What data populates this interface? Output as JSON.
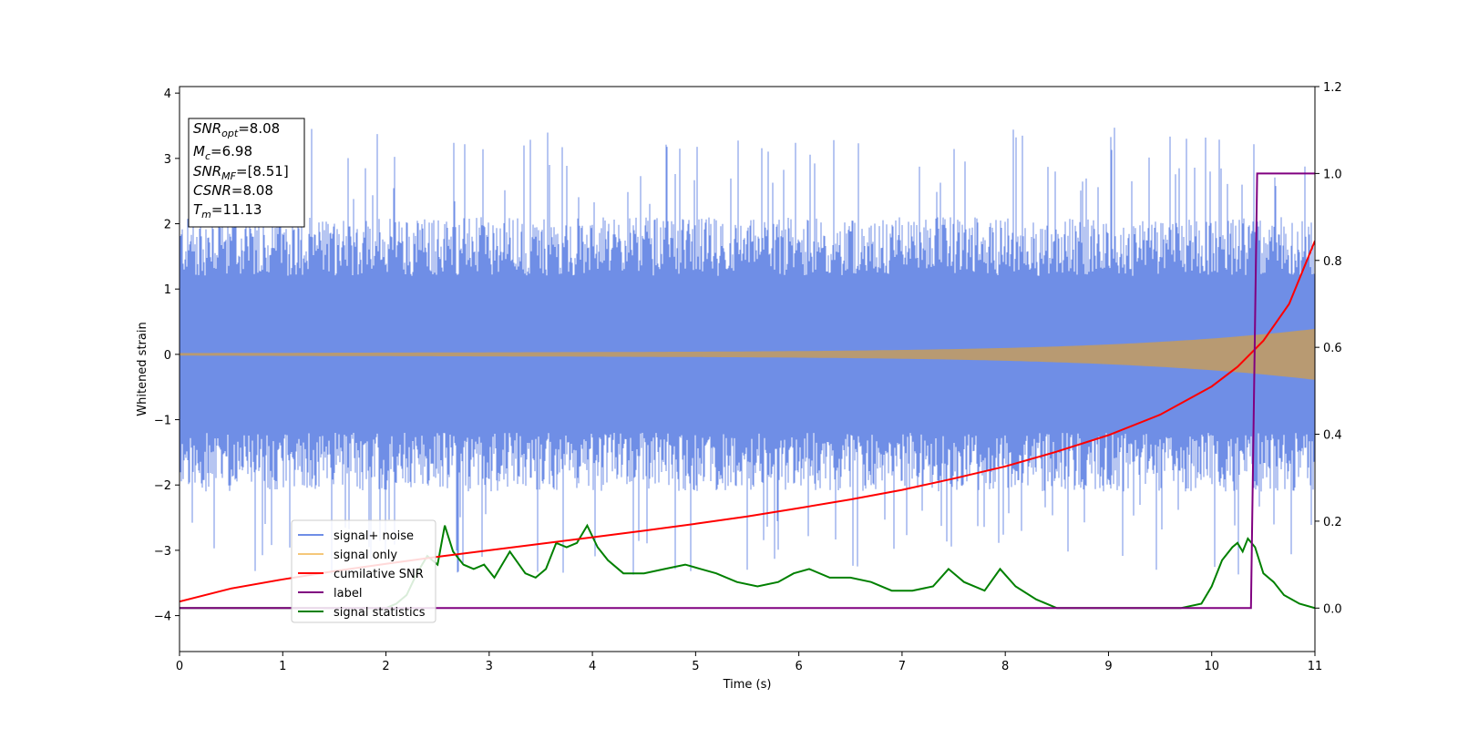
{
  "chart_data": {
    "type": "line",
    "xlabel": "Time (s)",
    "ylabel": "Whitened strain",
    "xlim": [
      0,
      11
    ],
    "ylim_left": [
      -4.55,
      4.1
    ],
    "ylim_right": [
      -0.1,
      1.2
    ],
    "x_ticks": [
      "0",
      "1",
      "2",
      "3",
      "4",
      "5",
      "6",
      "7",
      "8",
      "9",
      "10",
      "11"
    ],
    "y_left_ticks": [
      "4",
      "3",
      "2",
      "1",
      "0",
      "−1",
      "−2",
      "−3",
      "−4"
    ],
    "y_right_ticks": [
      "1.2",
      "1.0",
      "0.8",
      "0.6",
      "0.4",
      "0.2",
      "0.0"
    ],
    "annotation": [
      {
        "main": "SNR",
        "sub": "opt",
        "rest": "=8.08"
      },
      {
        "main": "M",
        "sub": "c",
        "rest": "=6.98"
      },
      {
        "main": "SNR",
        "sub": "MF",
        "rest": "=[8.51]"
      },
      {
        "main": "CSNR",
        "sub": "",
        "rest": "=8.08"
      },
      {
        "main": "T",
        "sub": "m",
        "rest": "=11.13"
      }
    ],
    "legend_position": "lower-left",
    "legend": [
      "signal+ noise",
      "signal only",
      "cumilative SNR",
      "label",
      "signal statistics"
    ],
    "colors": {
      "signal_noise": "#6f8ee6",
      "signal_only": "#e6b06a",
      "cumulative_snr": "#ff0000",
      "label": "#800080",
      "signal_statistics": "#008000"
    },
    "series": [
      {
        "name": "cumilative SNR",
        "axis": "right",
        "x": [
          0,
          0.5,
          1,
          1.5,
          2,
          2.5,
          3,
          3.5,
          4,
          4.5,
          5,
          5.5,
          6,
          6.5,
          7,
          7.5,
          8,
          8.5,
          9,
          9.5,
          10,
          10.25,
          10.5,
          10.75,
          11
        ],
        "y": [
          0.015,
          0.045,
          0.066,
          0.085,
          0.102,
          0.118,
          0.133,
          0.148,
          0.163,
          0.178,
          0.194,
          0.211,
          0.23,
          0.25,
          0.272,
          0.298,
          0.326,
          0.36,
          0.398,
          0.445,
          0.51,
          0.555,
          0.615,
          0.7,
          0.845
        ]
      },
      {
        "name": "label",
        "axis": "right",
        "x": [
          0,
          10.38,
          10.44,
          11
        ],
        "y": [
          0,
          0,
          1,
          1
        ]
      },
      {
        "name": "signal statistics",
        "axis": "right",
        "x": [
          0,
          0.5,
          1,
          1.5,
          2,
          2.1,
          2.2,
          2.3,
          2.4,
          2.5,
          2.57,
          2.65,
          2.75,
          2.85,
          2.95,
          3.05,
          3.2,
          3.35,
          3.45,
          3.55,
          3.65,
          3.75,
          3.85,
          3.95,
          4.05,
          4.15,
          4.3,
          4.5,
          4.7,
          4.9,
          5.05,
          5.2,
          5.4,
          5.6,
          5.8,
          5.95,
          6.1,
          6.3,
          6.5,
          6.7,
          6.9,
          7.1,
          7.3,
          7.45,
          7.6,
          7.8,
          7.95,
          8.1,
          8.3,
          8.5,
          8.7,
          8.9,
          9.1,
          9.3,
          9.5,
          9.7,
          9.9,
          10.0,
          10.1,
          10.2,
          10.25,
          10.3,
          10.35,
          10.42,
          10.5,
          10.6,
          10.7,
          10.85,
          11.0
        ],
        "y": [
          0.0,
          0.0,
          0.0,
          0.0,
          0.0,
          0.01,
          0.03,
          0.08,
          0.12,
          0.1,
          0.19,
          0.13,
          0.1,
          0.09,
          0.1,
          0.07,
          0.13,
          0.08,
          0.07,
          0.09,
          0.15,
          0.14,
          0.15,
          0.19,
          0.14,
          0.11,
          0.08,
          0.08,
          0.09,
          0.1,
          0.09,
          0.08,
          0.06,
          0.05,
          0.06,
          0.08,
          0.09,
          0.07,
          0.07,
          0.06,
          0.04,
          0.04,
          0.05,
          0.09,
          0.06,
          0.04,
          0.09,
          0.05,
          0.02,
          0.0,
          0.0,
          0.0,
          0.0,
          0.0,
          0.0,
          0.0,
          0.01,
          0.05,
          0.11,
          0.14,
          0.15,
          0.13,
          0.16,
          0.14,
          0.08,
          0.06,
          0.03,
          0.01,
          0.0
        ]
      }
    ]
  }
}
